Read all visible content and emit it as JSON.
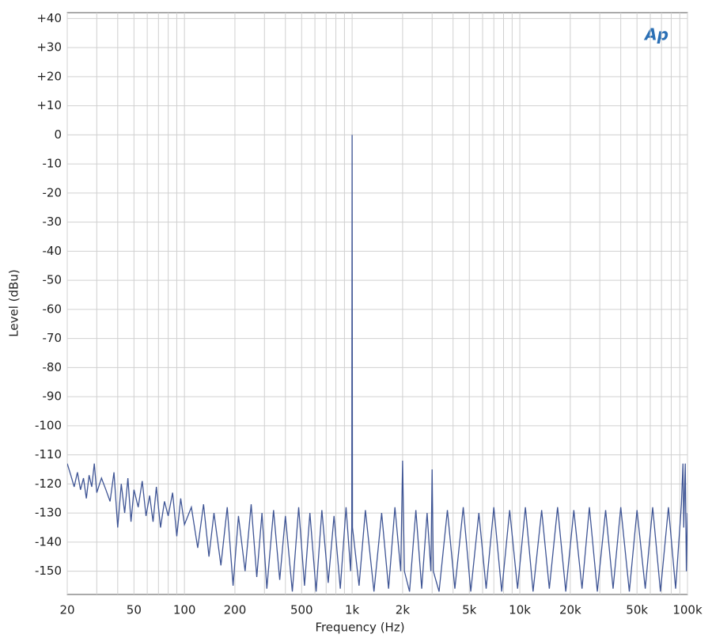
{
  "chart_data": {
    "type": "line",
    "logo": "Ap",
    "xlabel": "Frequency (Hz)",
    "ylabel": "Level (dBu)",
    "xscale": "log",
    "grid": true,
    "color": "#3f5595",
    "xlim": [
      20,
      100000
    ],
    "ylim": [
      -158,
      42
    ],
    "xticks": [
      20,
      50,
      100,
      200,
      500,
      {
        "value": 1000,
        "label": "1k"
      },
      {
        "value": 2000,
        "label": "2k"
      },
      {
        "value": 5000,
        "label": "5k"
      },
      {
        "value": 10000,
        "label": "10k"
      },
      {
        "value": 20000,
        "label": "20k"
      },
      {
        "value": 50000,
        "label": "50k"
      },
      {
        "value": 100000,
        "label": "100k"
      }
    ],
    "xgrid_minor": [
      30,
      40,
      60,
      70,
      80,
      90,
      300,
      400,
      600,
      700,
      800,
      900,
      3000,
      4000,
      6000,
      7000,
      8000,
      9000,
      30000,
      40000,
      60000,
      70000,
      80000,
      90000
    ],
    "yticks": [
      {
        "value": 40,
        "label": "+40"
      },
      {
        "value": 30,
        "label": "+30"
      },
      {
        "value": 20,
        "label": "+20"
      },
      {
        "value": 10,
        "label": "+10"
      },
      0,
      -10,
      -20,
      -30,
      -40,
      -50,
      -60,
      -70,
      -80,
      -90,
      -100,
      -110,
      -120,
      -130,
      -140,
      -150
    ],
    "x": [
      20,
      21,
      22,
      23,
      24,
      25,
      26,
      27,
      28,
      29,
      30,
      32,
      34,
      36,
      38,
      40,
      42,
      44,
      46,
      48,
      50,
      53,
      56,
      59,
      62,
      65,
      68,
      72,
      76,
      80,
      85,
      90,
      95,
      100,
      110,
      120,
      130,
      140,
      150,
      165,
      180,
      195,
      210,
      230,
      250,
      270,
      290,
      310,
      340,
      370,
      400,
      440,
      480,
      520,
      560,
      610,
      660,
      720,
      780,
      850,
      920,
      980,
      995,
      1000,
      1005,
      1100,
      1200,
      1350,
      1500,
      1650,
      1800,
      1950,
      2000,
      2050,
      2200,
      2400,
      2600,
      2800,
      2950,
      3000,
      3050,
      3300,
      3700,
      4100,
      4600,
      5100,
      5700,
      6300,
      7000,
      7800,
      8700,
      9700,
      10800,
      12000,
      13500,
      15000,
      16800,
      18800,
      21000,
      23500,
      26000,
      29000,
      32500,
      36000,
      40000,
      45000,
      50000,
      56000,
      62000,
      69000,
      77000,
      85000,
      92000,
      94000,
      95000,
      97000,
      98500,
      100000
    ],
    "values": [
      -113,
      -117,
      -121,
      -116,
      -122,
      -118,
      -125,
      -117,
      -121,
      -113,
      -123,
      -118,
      -122,
      -126,
      -116,
      -135,
      -120,
      -130,
      -118,
      -133,
      -122,
      -128,
      -119,
      -131,
      -124,
      -133,
      -121,
      -135,
      -126,
      -131,
      -123,
      -138,
      -125,
      -134,
      -128,
      -142,
      -127,
      -145,
      -130,
      -148,
      -128,
      -155,
      -131,
      -150,
      -127,
      -152,
      -130,
      -156,
      -129,
      -153,
      -131,
      -157,
      -128,
      -155,
      -130,
      -157,
      -129,
      -154,
      -131,
      -156,
      -128,
      -150,
      -135,
      0,
      -135,
      -155,
      -129,
      -157,
      -130,
      -156,
      -128,
      -150,
      -112,
      -150,
      -157,
      -129,
      -156,
      -130,
      -150,
      -115,
      -150,
      -157,
      -129,
      -156,
      -128,
      -157,
      -130,
      -156,
      -128,
      -157,
      -129,
      -156,
      -128,
      -157,
      -129,
      -156,
      -128,
      -157,
      -129,
      -156,
      -128,
      -157,
      -129,
      -156,
      -128,
      -157,
      -129,
      -156,
      -128,
      -157,
      -128,
      -156,
      -127,
      -113,
      -135,
      -113,
      -150,
      -130
    ]
  }
}
